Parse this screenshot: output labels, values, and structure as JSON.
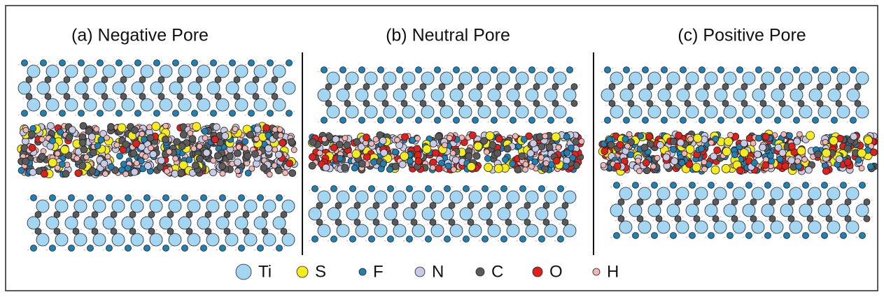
{
  "panels": [
    {
      "title": "(a) Negative Pore"
    },
    {
      "title": "(b) Neutral Pore"
    },
    {
      "title": "(c) Positive Pore"
    }
  ],
  "legend": [
    {
      "label": "Ti",
      "color": "#a3d6f2"
    },
    {
      "label": "S",
      "color": "#f4ec1c"
    },
    {
      "label": "F",
      "color": "#1f80b4"
    },
    {
      "label": "N",
      "color": "#c8cae6"
    },
    {
      "label": "C",
      "color": "#5a5a5a"
    },
    {
      "label": "O",
      "color": "#e0201c"
    },
    {
      "label": "H",
      "color": "#f2b6b4"
    }
  ]
}
